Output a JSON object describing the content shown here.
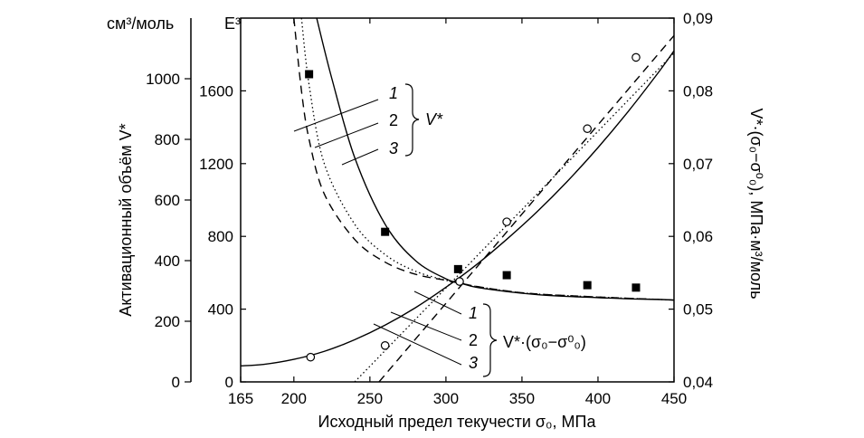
{
  "chart_data": {
    "type": "line",
    "xlabel": "Исходный предел текучести σ₀, МПа",
    "x_ticks": [
      "165",
      "200",
      "250",
      "300",
      "350",
      "400",
      "450"
    ],
    "xlim": [
      165,
      450
    ],
    "axes": {
      "left_outer": {
        "unit": "см³/моль",
        "label": "Активационный объём V*",
        "ticks": [
          "0",
          "200",
          "400",
          "600",
          "800",
          "1000"
        ],
        "lim": [
          0,
          1200
        ]
      },
      "left_inner": {
        "unit": "E³",
        "ticks": [
          "0",
          "400",
          "800",
          "1200",
          "1600"
        ],
        "lim": [
          0,
          2000
        ]
      },
      "right": {
        "label": "V*·(σ₀−σ⁰₀), МПа·м³/моль",
        "ticks": [
          "0,04",
          "0,05",
          "0,06",
          "0,07",
          "0,08",
          "0,09"
        ],
        "lim": [
          0.04,
          0.09
        ]
      }
    },
    "series": [
      {
        "group": "V*",
        "name": "1",
        "style": "solid",
        "axis": "left_outer",
        "x": [
          215,
          225,
          240,
          260,
          280,
          300,
          310,
          320,
          340,
          360,
          380,
          400,
          420,
          440,
          450
        ],
        "y": [
          1200,
          1000,
          740,
          520,
          400,
          340,
          325,
          312,
          298,
          288,
          282,
          278,
          274,
          272,
          270
        ]
      },
      {
        "group": "V*",
        "name": "2",
        "style": "dotted",
        "axis": "left_outer",
        "x": [
          205,
          210,
          220,
          240,
          260,
          280,
          300,
          310,
          320,
          340,
          360,
          400,
          450
        ],
        "y": [
          1200,
          980,
          720,
          520,
          420,
          365,
          335,
          325,
          315,
          300,
          290,
          280,
          270
        ]
      },
      {
        "group": "V*",
        "name": "3",
        "style": "dashed",
        "axis": "left_outer",
        "x": [
          200,
          205,
          210,
          220,
          240,
          260,
          280,
          300,
          310,
          320,
          340,
          360,
          400,
          450
        ],
        "y": [
          1200,
          960,
          800,
          620,
          470,
          395,
          355,
          335,
          325,
          315,
          300,
          290,
          280,
          270
        ]
      },
      {
        "group": "V*·(σ₀−σ⁰₀)",
        "name": "1",
        "style": "solid",
        "axis": "right",
        "x": [
          165,
          180,
          200,
          220,
          240,
          260,
          280,
          300,
          320,
          340,
          360,
          380,
          400,
          420,
          440,
          450
        ],
        "y": [
          0.0422,
          0.0424,
          0.0431,
          0.0442,
          0.0458,
          0.0478,
          0.0502,
          0.053,
          0.0561,
          0.0596,
          0.0634,
          0.0676,
          0.0722,
          0.0772,
          0.0826,
          0.0855
        ]
      },
      {
        "group": "V*·(σ₀−σ⁰₀)",
        "name": "2",
        "style": "dotted",
        "axis": "right",
        "x": [
          240,
          450
        ],
        "y": [
          0.04,
          0.0852
        ]
      },
      {
        "group": "V*·(σ₀−σ⁰₀)",
        "name": "3",
        "style": "dashed",
        "axis": "right",
        "x": [
          256,
          450
        ],
        "y": [
          0.04,
          0.0876
        ]
      }
    ],
    "markers": [
      {
        "shape": "square",
        "axis": "left_outer",
        "x": [
          210,
          260,
          308,
          340,
          393,
          425
        ],
        "y": [
          1015,
          495,
          372,
          352,
          319,
          311
        ]
      },
      {
        "shape": "circle",
        "axis": "right",
        "x": [
          211,
          260,
          309,
          340,
          393,
          425
        ],
        "y": [
          0.0434,
          0.045,
          0.0538,
          0.062,
          0.0748,
          0.0846
        ]
      }
    ],
    "legend": [
      {
        "group": "V*",
        "labels": [
          "1",
          "2",
          "3"
        ]
      },
      {
        "group": "V*·(σ₀−σ⁰₀)",
        "labels": [
          "1",
          "2",
          "3"
        ]
      }
    ]
  }
}
